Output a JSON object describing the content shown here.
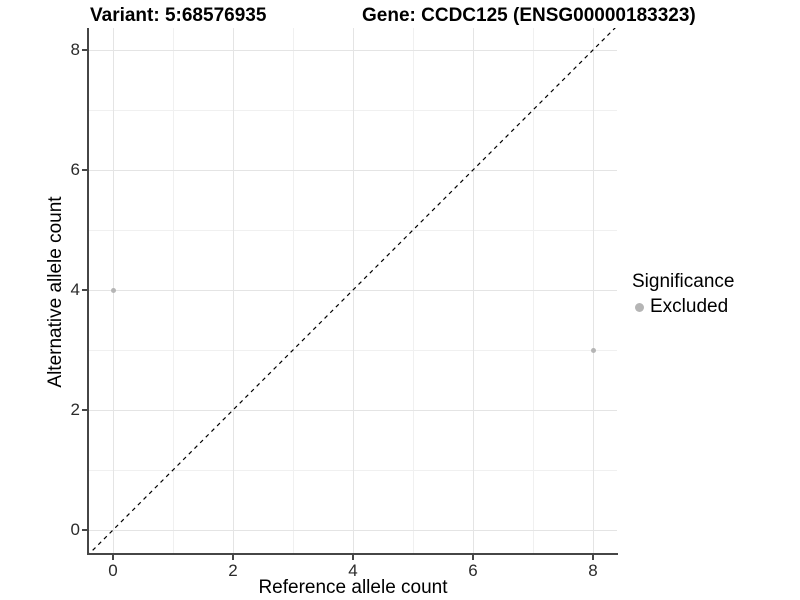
{
  "header": {
    "variant_title": "Variant: 5:68576935",
    "gene_title": "Gene: CCDC125 (ENSG00000183323)"
  },
  "axes": {
    "x_label": "Reference allele count",
    "y_label": "Alternative allele count"
  },
  "legend": {
    "title": "Significance",
    "items": [
      {
        "label": "Excluded",
        "color": "#b5b5b5"
      }
    ]
  },
  "colors": {
    "point": "#b5b5b5",
    "axis_line": "#464646",
    "grid_major": "#e4e4e4",
    "grid_minor": "#f0f0f0",
    "identity_line": "#000000"
  },
  "chart_data": {
    "type": "scatter",
    "title": "Variant: 5:68576935   Gene: CCDC125 (ENSG00000183323)",
    "xlabel": "Reference allele count",
    "ylabel": "Alternative allele count",
    "xlim": [
      -0.4,
      8.4
    ],
    "ylim": [
      -0.4,
      8.4
    ],
    "x_ticks": [
      0,
      2,
      4,
      6,
      8
    ],
    "y_ticks": [
      0,
      2,
      4,
      6,
      8
    ],
    "x_minor": [
      1,
      3,
      5,
      7
    ],
    "y_minor": [
      1,
      3,
      5,
      7
    ],
    "grid": true,
    "legend_position": "right",
    "series": [
      {
        "name": "Excluded",
        "color": "#b5b5b5",
        "points": [
          [
            0,
            4
          ],
          [
            8,
            3
          ]
        ]
      }
    ],
    "reference_line": {
      "type": "identity",
      "style": "dashed",
      "color": "#000000"
    }
  }
}
